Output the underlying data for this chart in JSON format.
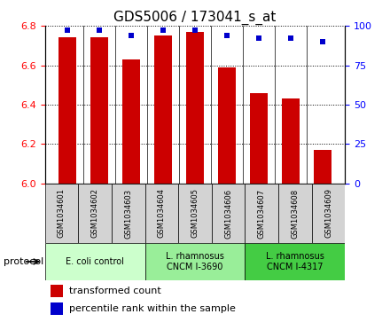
{
  "title": "GDS5006 / 173041_s_at",
  "samples": [
    "GSM1034601",
    "GSM1034602",
    "GSM1034603",
    "GSM1034604",
    "GSM1034605",
    "GSM1034606",
    "GSM1034607",
    "GSM1034608",
    "GSM1034609"
  ],
  "transformed_count": [
    6.74,
    6.74,
    6.63,
    6.75,
    6.77,
    6.59,
    6.46,
    6.43,
    6.17
  ],
  "percentile_rank": [
    97,
    97,
    94,
    97,
    97,
    94,
    92,
    92,
    90
  ],
  "ylim_left": [
    6.0,
    6.8
  ],
  "ylim_right": [
    0,
    100
  ],
  "yticks_left": [
    6.0,
    6.2,
    6.4,
    6.6,
    6.8
  ],
  "yticks_right": [
    0,
    25,
    50,
    75,
    100
  ],
  "bar_color": "#cc0000",
  "dot_color": "#0000cc",
  "bar_width": 0.55,
  "protocols": [
    {
      "label": "E. coli control",
      "indices": [
        0,
        1,
        2
      ],
      "color": "#ccffcc"
    },
    {
      "label": "L. rhamnosus\nCNCM I-3690",
      "indices": [
        3,
        4,
        5
      ],
      "color": "#99ee99"
    },
    {
      "label": "L. rhamnosus\nCNCM I-4317",
      "indices": [
        6,
        7,
        8
      ],
      "color": "#44cc44"
    }
  ],
  "legend_bar_label": "transformed count",
  "legend_dot_label": "percentile rank within the sample",
  "protocol_label": "protocol",
  "background_plot": "#ffffff",
  "background_sample": "#d3d3d3",
  "fig_width": 4.4,
  "fig_height": 3.63,
  "dpi": 100
}
